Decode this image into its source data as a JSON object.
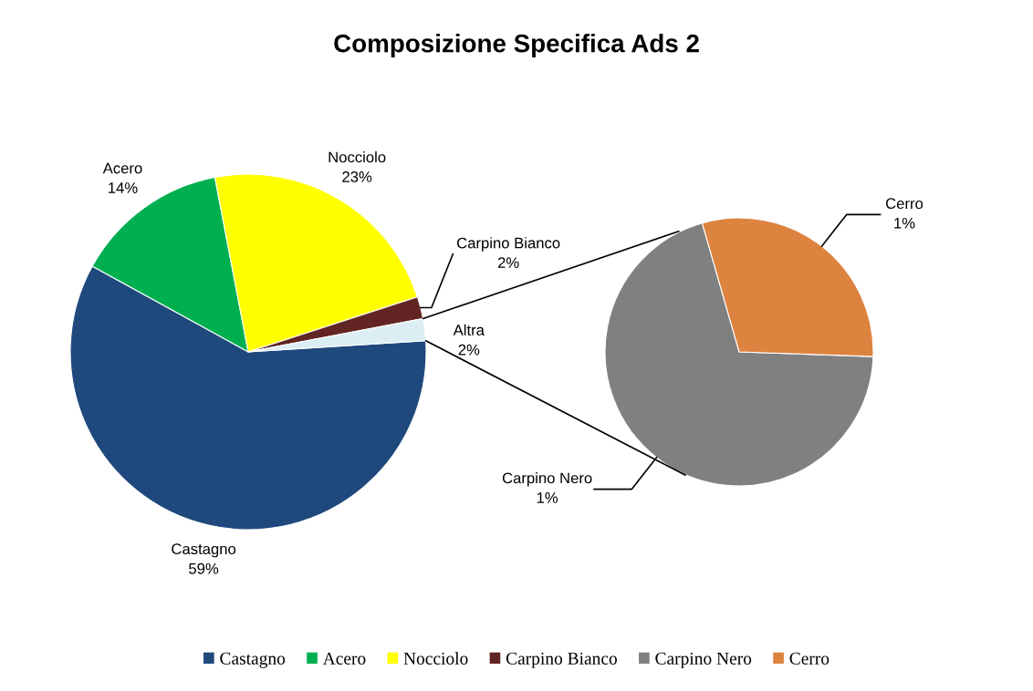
{
  "chart_data": [
    {
      "type": "pie",
      "title": "Composizione Specifica Ads 2",
      "categories": [
        "Castagno",
        "Acero",
        "Nocciolo",
        "Carpino Bianco",
        "Altra"
      ],
      "values": [
        59,
        14,
        23,
        2,
        2
      ],
      "value_labels": [
        "59%",
        "14%",
        "23%",
        "2%",
        "2%"
      ],
      "colors": [
        "#1f497d",
        "#00b050",
        "#ffff00",
        "#632523",
        "#dbeef4"
      ],
      "legend": "bottom"
    },
    {
      "type": "pie",
      "categories": [
        "Carpino Nero",
        "Cerro"
      ],
      "values": [
        1.4,
        0.6
      ],
      "value_labels": [
        "1%",
        "1%"
      ],
      "colors": [
        "#808080",
        "#dd8340"
      ],
      "legend": "bottom"
    }
  ]
}
